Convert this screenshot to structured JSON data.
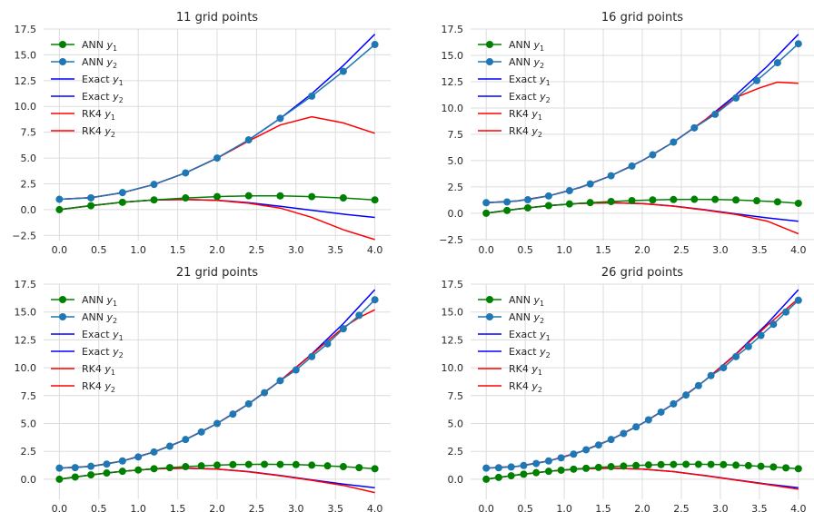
{
  "chart_data": [
    {
      "type": "line",
      "title": "11 grid points",
      "xlim": [
        -0.2,
        4.2
      ],
      "ylim": [
        -3.0,
        17.5
      ],
      "xticks": [
        0.0,
        0.5,
        1.0,
        1.5,
        2.0,
        2.5,
        3.0,
        3.5,
        4.0
      ],
      "yticks": [
        -2.5,
        0.0,
        2.5,
        5.0,
        7.5,
        10.0,
        12.5,
        15.0,
        17.5
      ],
      "grid": true,
      "legend_position": "upper-left",
      "legend": [
        "ANN y1",
        "ANN y2",
        "Exact y1",
        "Exact y2",
        "RK4 y1",
        "RK4 y2"
      ],
      "series": [
        {
          "name": "ANN y1",
          "x": [
            0.0,
            0.4,
            0.8,
            1.2,
            1.6,
            2.0,
            2.4,
            2.8,
            3.2,
            3.6,
            4.0
          ],
          "values": [
            0.0,
            0.38,
            0.71,
            0.94,
            1.13,
            1.26,
            1.34,
            1.33,
            1.26,
            1.13,
            0.94
          ]
        },
        {
          "name": "ANN y2",
          "x": [
            0.0,
            0.4,
            0.8,
            1.2,
            1.6,
            2.0,
            2.4,
            2.8,
            3.2,
            3.6,
            4.0
          ],
          "values": [
            1.0,
            1.14,
            1.65,
            2.44,
            3.56,
            5.0,
            6.76,
            8.84,
            11.0,
            13.4,
            16.0
          ]
        },
        {
          "name": "Exact y1",
          "x": [
            0.0,
            0.4,
            0.8,
            1.2,
            1.6,
            2.0,
            2.4,
            2.8,
            3.2,
            3.6,
            4.0
          ],
          "values": [
            0.0,
            0.39,
            0.72,
            0.93,
            0.99,
            0.91,
            0.68,
            0.33,
            -0.06,
            -0.44,
            -0.76
          ]
        },
        {
          "name": "Exact y2",
          "x": [
            0.0,
            0.4,
            0.8,
            1.2,
            1.6,
            2.0,
            2.4,
            2.8,
            3.2,
            3.6,
            4.0
          ],
          "values": [
            1.0,
            1.16,
            1.64,
            2.44,
            3.56,
            5.0,
            6.76,
            8.84,
            11.24,
            13.96,
            17.0
          ]
        },
        {
          "name": "RK4 y1",
          "x": [
            0.0,
            0.4,
            0.8,
            1.2,
            1.6,
            2.0,
            2.4,
            2.8,
            3.2,
            3.6,
            4.0
          ],
          "values": [
            0.0,
            0.39,
            0.72,
            0.93,
            0.99,
            0.9,
            0.62,
            0.15,
            -0.75,
            -1.95,
            -2.9
          ]
        },
        {
          "name": "RK4 y2",
          "x": [
            0.0,
            0.4,
            0.8,
            1.2,
            1.6,
            2.0,
            2.4,
            2.8,
            3.2,
            3.6,
            4.0
          ],
          "values": [
            1.0,
            1.16,
            1.64,
            2.44,
            3.56,
            4.98,
            6.65,
            8.2,
            9.0,
            8.4,
            7.4
          ]
        }
      ]
    },
    {
      "type": "line",
      "title": "16 grid points",
      "xlim": [
        -0.2,
        4.2
      ],
      "ylim": [
        -2.6,
        17.5
      ],
      "xticks": [
        0.0,
        0.5,
        1.0,
        1.5,
        2.0,
        2.5,
        3.0,
        3.5,
        4.0
      ],
      "yticks": [
        -2.5,
        0.0,
        2.5,
        5.0,
        7.5,
        10.0,
        12.5,
        15.0,
        17.5
      ],
      "grid": true,
      "legend_position": "upper-left",
      "legend": [
        "ANN y1",
        "ANN y2",
        "Exact y1",
        "Exact y2",
        "RK4 y1",
        "RK4 y2"
      ],
      "series": [
        {
          "name": "ANN y1",
          "x": [
            0.0,
            0.267,
            0.533,
            0.8,
            1.067,
            1.333,
            1.6,
            1.867,
            2.133,
            2.4,
            2.667,
            2.933,
            3.2,
            3.467,
            3.733,
            4.0
          ],
          "values": [
            0.0,
            0.26,
            0.51,
            0.72,
            0.88,
            1.01,
            1.11,
            1.2,
            1.26,
            1.3,
            1.32,
            1.31,
            1.26,
            1.18,
            1.08,
            0.94
          ]
        },
        {
          "name": "ANN y2",
          "x": [
            0.0,
            0.267,
            0.533,
            0.8,
            1.067,
            1.333,
            1.6,
            1.867,
            2.133,
            2.4,
            2.667,
            2.933,
            3.2,
            3.467,
            3.733,
            4.0
          ],
          "values": [
            1.0,
            1.07,
            1.28,
            1.64,
            2.14,
            2.78,
            3.56,
            4.48,
            5.55,
            6.76,
            8.11,
            9.4,
            10.95,
            12.6,
            14.3,
            16.1
          ]
        },
        {
          "name": "Exact y1",
          "x": [
            0.0,
            0.4,
            0.8,
            1.2,
            1.6,
            2.0,
            2.4,
            2.8,
            3.2,
            3.6,
            4.0
          ],
          "values": [
            0.0,
            0.39,
            0.72,
            0.93,
            0.99,
            0.91,
            0.68,
            0.33,
            -0.06,
            -0.44,
            -0.76
          ]
        },
        {
          "name": "Exact y2",
          "x": [
            0.0,
            0.4,
            0.8,
            1.2,
            1.6,
            2.0,
            2.4,
            2.8,
            3.2,
            3.6,
            4.0
          ],
          "values": [
            1.0,
            1.16,
            1.64,
            2.44,
            3.56,
            5.0,
            6.76,
            8.84,
            11.24,
            13.96,
            17.0
          ]
        },
        {
          "name": "RK4 y1",
          "x": [
            0.0,
            0.4,
            0.8,
            1.2,
            1.6,
            2.0,
            2.4,
            2.8,
            3.2,
            3.6,
            4.0
          ],
          "values": [
            0.0,
            0.39,
            0.72,
            0.93,
            0.99,
            0.91,
            0.67,
            0.3,
            -0.12,
            -0.75,
            -1.95
          ]
        },
        {
          "name": "RK4 y2",
          "x": [
            0.0,
            0.4,
            0.8,
            1.2,
            1.6,
            2.0,
            2.4,
            2.8,
            3.2,
            3.5,
            3.73,
            4.0
          ],
          "values": [
            1.0,
            1.16,
            1.64,
            2.44,
            3.56,
            5.0,
            6.76,
            8.84,
            11.0,
            11.9,
            12.45,
            12.35
          ]
        }
      ]
    },
    {
      "type": "line",
      "title": "21 grid points",
      "xlim": [
        -0.2,
        4.2
      ],
      "ylim": [
        -1.8,
        17.5
      ],
      "xticks": [
        0.0,
        0.5,
        1.0,
        1.5,
        2.0,
        2.5,
        3.0,
        3.5,
        4.0
      ],
      "yticks": [
        0.0,
        2.5,
        5.0,
        7.5,
        10.0,
        12.5,
        15.0,
        17.5
      ],
      "grid": true,
      "legend_position": "upper-left",
      "legend": [
        "ANN y1",
        "ANN y2",
        "Exact y1",
        "Exact y2",
        "RK4 y1",
        "RK4 y2"
      ],
      "series": [
        {
          "name": "ANN y1",
          "x": [
            0.0,
            0.2,
            0.4,
            0.6,
            0.8,
            1.0,
            1.2,
            1.4,
            1.6,
            1.8,
            2.0,
            2.2,
            2.4,
            2.6,
            2.8,
            3.0,
            3.2,
            3.4,
            3.6,
            3.8,
            4.0
          ],
          "values": [
            0.0,
            0.2,
            0.39,
            0.56,
            0.71,
            0.83,
            0.94,
            1.04,
            1.13,
            1.2,
            1.26,
            1.31,
            1.33,
            1.34,
            1.33,
            1.31,
            1.26,
            1.2,
            1.13,
            1.04,
            0.94
          ]
        },
        {
          "name": "ANN y2",
          "x": [
            0.0,
            0.2,
            0.4,
            0.6,
            0.8,
            1.0,
            1.2,
            1.4,
            1.6,
            1.8,
            2.0,
            2.2,
            2.4,
            2.6,
            2.8,
            3.0,
            3.2,
            3.4,
            3.6,
            3.8,
            4.0
          ],
          "values": [
            1.0,
            1.04,
            1.16,
            1.36,
            1.64,
            2.0,
            2.44,
            2.96,
            3.56,
            4.24,
            5.0,
            5.84,
            6.76,
            7.76,
            8.84,
            9.8,
            11.0,
            12.15,
            13.5,
            14.7,
            16.1
          ]
        },
        {
          "name": "Exact y1",
          "x": [
            0.0,
            0.4,
            0.8,
            1.2,
            1.6,
            2.0,
            2.4,
            2.8,
            3.2,
            3.6,
            4.0
          ],
          "values": [
            0.0,
            0.39,
            0.72,
            0.93,
            0.99,
            0.91,
            0.68,
            0.33,
            -0.06,
            -0.44,
            -0.76
          ]
        },
        {
          "name": "Exact y2",
          "x": [
            0.0,
            0.4,
            0.8,
            1.2,
            1.6,
            2.0,
            2.4,
            2.8,
            3.2,
            3.6,
            4.0
          ],
          "values": [
            1.0,
            1.16,
            1.64,
            2.44,
            3.56,
            5.0,
            6.76,
            8.84,
            11.24,
            13.96,
            17.0
          ]
        },
        {
          "name": "RK4 y1",
          "x": [
            0.0,
            0.4,
            0.8,
            1.2,
            1.6,
            2.0,
            2.4,
            2.8,
            3.2,
            3.6,
            4.0
          ],
          "values": [
            0.0,
            0.39,
            0.72,
            0.93,
            0.99,
            0.91,
            0.67,
            0.31,
            -0.1,
            -0.55,
            -1.2
          ]
        },
        {
          "name": "RK4 y2",
          "x": [
            0.0,
            0.4,
            0.8,
            1.2,
            1.6,
            2.0,
            2.4,
            2.8,
            3.2,
            3.6,
            3.8,
            4.0
          ],
          "values": [
            1.0,
            1.16,
            1.64,
            2.44,
            3.56,
            5.0,
            6.76,
            8.84,
            11.2,
            13.6,
            14.5,
            15.2
          ]
        }
      ]
    },
    {
      "type": "line",
      "title": "26 grid points",
      "xlim": [
        -0.2,
        4.2
      ],
      "ylim": [
        -1.8,
        17.5
      ],
      "xticks": [
        0.0,
        0.5,
        1.0,
        1.5,
        2.0,
        2.5,
        3.0,
        3.5,
        4.0
      ],
      "yticks": [
        0.0,
        2.5,
        5.0,
        7.5,
        10.0,
        12.5,
        15.0,
        17.5
      ],
      "grid": true,
      "legend_position": "upper-left",
      "legend": [
        "ANN y1",
        "ANN y2",
        "Exact y1",
        "Exact y2",
        "RK4 y1",
        "RK4 y2"
      ],
      "series": [
        {
          "name": "ANN y1",
          "x": [
            0.0,
            0.16,
            0.32,
            0.48,
            0.64,
            0.8,
            0.96,
            1.12,
            1.28,
            1.44,
            1.6,
            1.76,
            1.92,
            2.08,
            2.24,
            2.4,
            2.56,
            2.72,
            2.88,
            3.04,
            3.2,
            3.36,
            3.52,
            3.68,
            3.84,
            4.0
          ],
          "values": [
            0.0,
            0.16,
            0.31,
            0.45,
            0.59,
            0.71,
            0.81,
            0.9,
            0.98,
            1.06,
            1.13,
            1.18,
            1.23,
            1.28,
            1.31,
            1.33,
            1.34,
            1.34,
            1.33,
            1.31,
            1.26,
            1.22,
            1.16,
            1.1,
            1.02,
            0.94
          ]
        },
        {
          "name": "ANN y2",
          "x": [
            0.0,
            0.16,
            0.32,
            0.48,
            0.64,
            0.8,
            0.96,
            1.12,
            1.28,
            1.44,
            1.6,
            1.76,
            1.92,
            2.08,
            2.24,
            2.4,
            2.56,
            2.72,
            2.88,
            3.04,
            3.2,
            3.36,
            3.52,
            3.68,
            3.84,
            4.0
          ],
          "values": [
            1.0,
            1.03,
            1.1,
            1.23,
            1.41,
            1.64,
            1.92,
            2.25,
            2.64,
            3.07,
            3.56,
            4.1,
            4.69,
            5.33,
            6.02,
            6.76,
            7.55,
            8.4,
            9.3,
            10.0,
            11.0,
            11.9,
            12.9,
            13.9,
            15.0,
            16.05
          ]
        },
        {
          "name": "Exact y1",
          "x": [
            0.0,
            0.4,
            0.8,
            1.2,
            1.6,
            2.0,
            2.4,
            2.8,
            3.2,
            3.6,
            4.0
          ],
          "values": [
            0.0,
            0.39,
            0.72,
            0.93,
            0.99,
            0.91,
            0.68,
            0.33,
            -0.06,
            -0.44,
            -0.76
          ]
        },
        {
          "name": "Exact y2",
          "x": [
            0.0,
            0.4,
            0.8,
            1.2,
            1.6,
            2.0,
            2.4,
            2.8,
            3.2,
            3.6,
            4.0
          ],
          "values": [
            1.0,
            1.16,
            1.64,
            2.44,
            3.56,
            5.0,
            6.76,
            8.84,
            11.24,
            13.96,
            17.0
          ]
        },
        {
          "name": "RK4 y1",
          "x": [
            0.0,
            0.4,
            0.8,
            1.2,
            1.6,
            2.0,
            2.4,
            2.8,
            3.2,
            3.6,
            4.0
          ],
          "values": [
            0.0,
            0.39,
            0.72,
            0.93,
            0.99,
            0.91,
            0.68,
            0.32,
            -0.08,
            -0.48,
            -0.9
          ]
        },
        {
          "name": "RK4 y2",
          "x": [
            0.0,
            0.4,
            0.8,
            1.2,
            1.6,
            2.0,
            2.4,
            2.8,
            3.2,
            3.6,
            4.0
          ],
          "values": [
            1.0,
            1.16,
            1.64,
            2.44,
            3.56,
            5.0,
            6.76,
            8.84,
            11.2,
            13.8,
            16.2
          ]
        }
      ]
    }
  ],
  "series_colors": {
    "ANN y1": "#008000",
    "ANN y2": "#1f77b4",
    "Exact y1": "#0000ff",
    "Exact y2": "#0000ff",
    "RK4 y1": "#ff0000",
    "RK4 y2": "#ff0000"
  }
}
